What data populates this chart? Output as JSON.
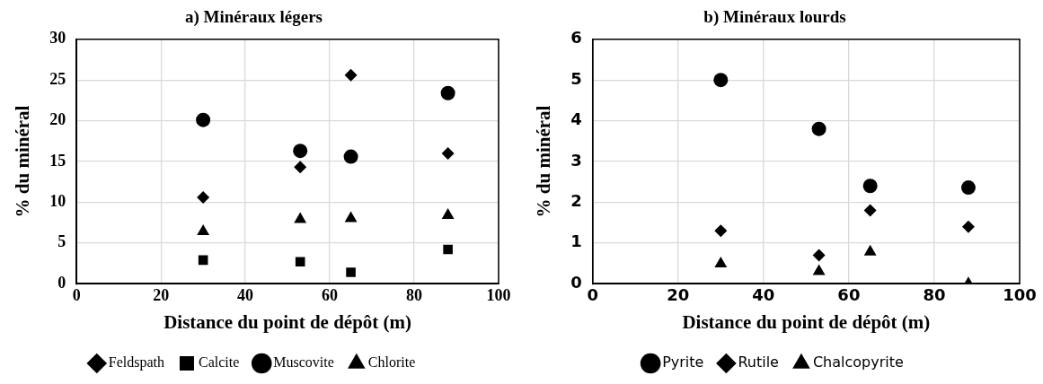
{
  "chart_data": [
    {
      "type": "scatter",
      "title": "a) Minéraux légers",
      "xlabel": "Distance du point de dépôt (m)",
      "ylabel": "% du minéral",
      "x": [
        30,
        53,
        65,
        88
      ],
      "xlim": [
        0,
        100
      ],
      "xticks": [
        0,
        20,
        40,
        60,
        80,
        100
      ],
      "ylim": [
        0,
        30
      ],
      "yticks": [
        0,
        5,
        10,
        15,
        20,
        25,
        30
      ],
      "grid": true,
      "legend": "bottom",
      "series": [
        {
          "name": "Feldspath",
          "color": "#000000",
          "marker": "diamond",
          "values": [
            10.6,
            14.3,
            25.6,
            16.0
          ]
        },
        {
          "name": "Calcite",
          "color": "#000000",
          "marker": "square",
          "values": [
            2.9,
            2.7,
            1.4,
            4.2
          ]
        },
        {
          "name": "Muscovite",
          "color": "#000000",
          "marker": "circle",
          "values": [
            20.1,
            16.3,
            15.6,
            23.4
          ]
        },
        {
          "name": "Chlorite",
          "color": "#000000",
          "marker": "triangle",
          "values": [
            6.4,
            7.9,
            8.0,
            8.4
          ]
        }
      ]
    },
    {
      "type": "scatter",
      "title": "b) Minéraux lourds",
      "xlabel": "Distance du point de dépôt (m)",
      "ylabel": "% du minéral",
      "x": [
        30,
        53,
        65,
        88
      ],
      "xlim": [
        0,
        100
      ],
      "xticks": [
        0,
        20,
        40,
        60,
        80,
        100
      ],
      "ylim": [
        0,
        6
      ],
      "yticks": [
        0,
        1,
        2,
        3,
        4,
        5,
        6
      ],
      "grid": true,
      "legend": "bottom",
      "series": [
        {
          "name": "Pyrite",
          "color": "#000000",
          "marker": "circle",
          "values": [
            5.0,
            3.8,
            2.4,
            2.36
          ]
        },
        {
          "name": "Rutile",
          "color": "#000000",
          "marker": "diamond",
          "values": [
            1.3,
            0.7,
            1.8,
            1.4
          ]
        },
        {
          "name": "Chalcopyrite",
          "color": "#000000",
          "marker": "triangle",
          "values": [
            0.49,
            0.3,
            0.78,
            0
          ]
        }
      ]
    }
  ]
}
